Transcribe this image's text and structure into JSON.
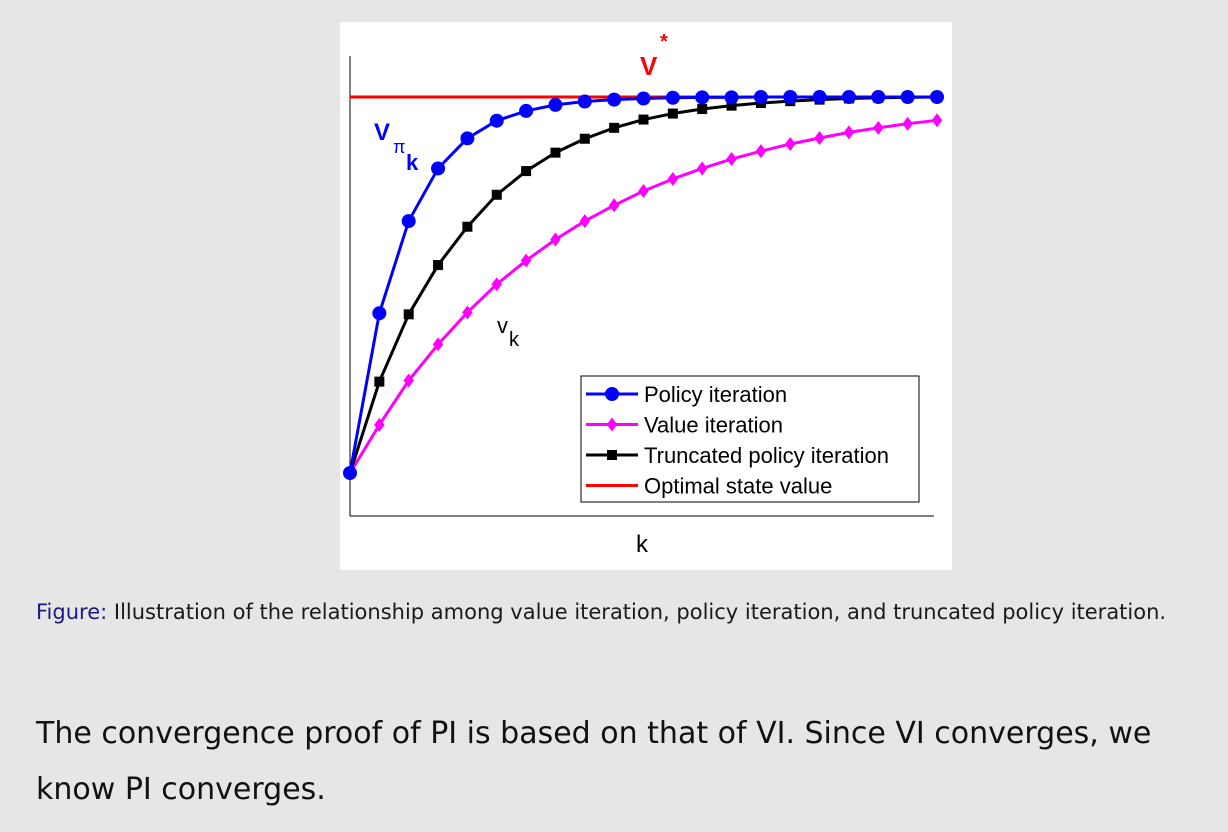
{
  "chart_data": {
    "type": "line",
    "xlabel": "k",
    "grid": false,
    "legend_placement": "bottom-right",
    "x": [
      0,
      1,
      2,
      3,
      4,
      5,
      6,
      7,
      8,
      9,
      10,
      11,
      12,
      13,
      14,
      15,
      16,
      17,
      18,
      19,
      20
    ],
    "optimal_value": 1.0,
    "series": [
      {
        "name": "Policy iteration",
        "color": "#0000ff",
        "marker": "circle",
        "values": [
          0,
          0.425,
          0.67,
          0.81,
          0.89,
          0.937,
          0.963,
          0.979,
          0.988,
          0.993,
          0.996,
          0.998,
          0.999,
          0.999,
          1.0,
          1.0,
          1.0,
          1.0,
          1.0,
          1.0,
          1.0
        ]
      },
      {
        "name": "Value iteration",
        "color": "#ff00ff",
        "marker": "diamond",
        "values": [
          0,
          0.128,
          0.246,
          0.342,
          0.427,
          0.502,
          0.565,
          0.621,
          0.67,
          0.712,
          0.75,
          0.782,
          0.81,
          0.835,
          0.856,
          0.875,
          0.891,
          0.906,
          0.918,
          0.929,
          0.938
        ]
      },
      {
        "name": "Truncated policy iteration",
        "color": "#000000",
        "marker": "square",
        "values": [
          0,
          0.243,
          0.422,
          0.553,
          0.655,
          0.74,
          0.803,
          0.852,
          0.889,
          0.918,
          0.94,
          0.956,
          0.968,
          0.977,
          0.984,
          0.989,
          0.993,
          0.996,
          0.998,
          0.999,
          1.0
        ]
      }
    ],
    "reference_line": {
      "name": "Optimal state value",
      "color": "#ff0000"
    },
    "annotations": {
      "vstar": {
        "main": "V",
        "sup": "*"
      },
      "vpi": {
        "main": "V",
        "sub": "π",
        "subsub": "k"
      },
      "vk": {
        "main": "v",
        "sub": "k"
      }
    }
  },
  "caption": {
    "label": "Figure:",
    "text": " Illustration of the relationship among value iteration, policy iteration, and truncated policy iteration."
  },
  "body_text": "The convergence proof of PI is based on that of VI. Since VI converges, we know PI converges."
}
